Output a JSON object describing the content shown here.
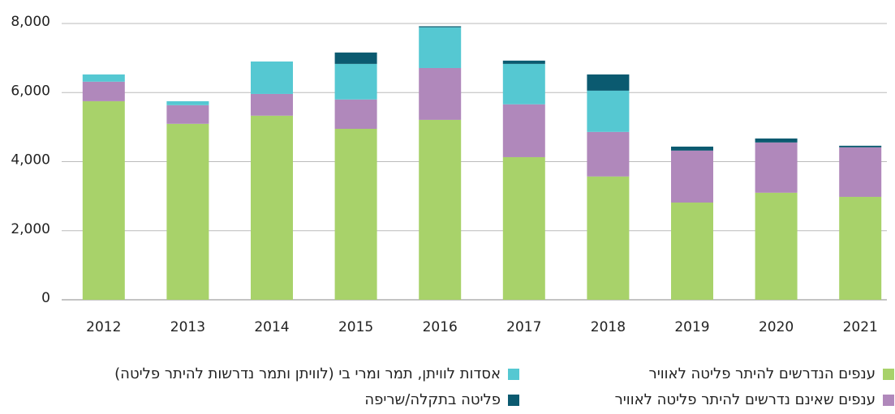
{
  "chart_data": {
    "type": "stacked_bar",
    "categories": [
      "2012",
      "2013",
      "2014",
      "2015",
      "2016",
      "2017",
      "2018",
      "2019",
      "2020",
      "2021"
    ],
    "series": [
      {
        "name": "ענפים הנדרשים להיתר פליטה לאוויר",
        "color": "#a8d26a",
        "values": [
          5750,
          5095,
          5330,
          4950,
          5210,
          4130,
          3570,
          2815,
          3100,
          2980
        ]
      },
      {
        "name": "ענפים שאינם נדרשים להיתר פליטה לאוויר",
        "color": "#b088bb",
        "values": [
          565,
          540,
          630,
          850,
          1500,
          1530,
          1290,
          1505,
          1455,
          1435
        ]
      },
      {
        "name": "אסדות לוויתן, תמר ומרי בי (לוויתן ותמר נדרשות להיתר פליטה)",
        "color": "#55c8d2",
        "values": [
          210,
          115,
          940,
          1030,
          1180,
          1170,
          1195,
          0,
          0,
          0
        ]
      },
      {
        "name": "פליטה בתקלה/שריפה",
        "color": "#0b5a70",
        "values": [
          0,
          0,
          0,
          330,
          30,
          95,
          470,
          115,
          115,
          45
        ]
      }
    ],
    "ylim": [
      0,
      8000
    ],
    "yticks": [
      0,
      {
        "value": 2000,
        "label": "2,000"
      },
      {
        "value": 4000,
        "label": "4,000"
      },
      {
        "value": 6000,
        "label": "6,000"
      },
      {
        "value": 8000,
        "label": "8,000"
      }
    ],
    "grid": true
  }
}
